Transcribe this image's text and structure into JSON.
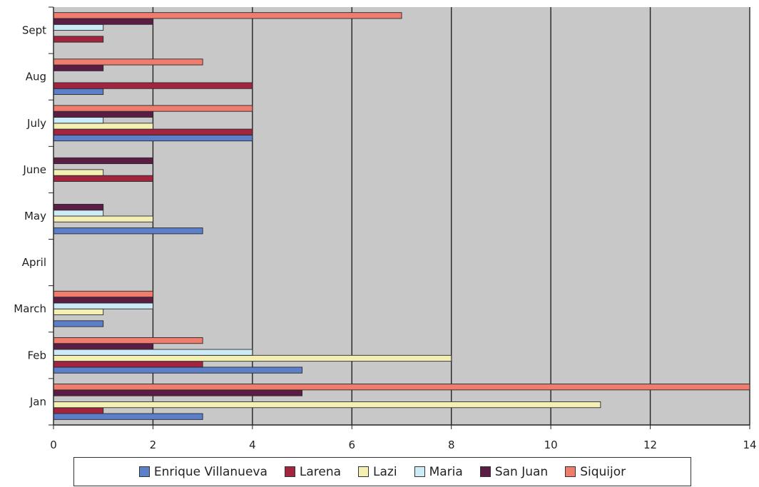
{
  "chart_data": {
    "type": "bar",
    "orientation": "horizontal",
    "categories": [
      "Jan",
      "Feb",
      "March",
      "April",
      "May",
      "June",
      "July",
      "Aug",
      "Sept"
    ],
    "series": [
      {
        "name": "Enrique Villanueva",
        "color": "#5B7FC8",
        "values": [
          3,
          5,
          1,
          0,
          3,
          0,
          4,
          1,
          0
        ]
      },
      {
        "name": "Larena",
        "color": "#A3243F",
        "values": [
          1,
          3,
          0,
          0,
          0,
          2,
          4,
          4,
          1
        ]
      },
      {
        "name": "Lazi",
        "color": "#F4F0B4",
        "values": [
          11,
          8,
          1,
          0,
          2,
          1,
          2,
          0,
          0
        ]
      },
      {
        "name": "Maria",
        "color": "#CDEBF7",
        "values": [
          0,
          4,
          2,
          0,
          1,
          0,
          1,
          0,
          1
        ]
      },
      {
        "name": "San Juan",
        "color": "#5C1D45",
        "values": [
          5,
          2,
          2,
          0,
          1,
          2,
          2,
          1,
          2
        ]
      },
      {
        "name": "Siquijor",
        "color": "#F07C6E",
        "values": [
          14,
          3,
          2,
          0,
          0,
          0,
          4,
          3,
          7
        ]
      }
    ],
    "x_ticks": [
      "0",
      "2",
      "4",
      "6",
      "8",
      "10",
      "12",
      "14"
    ],
    "xlim": [
      0,
      14
    ],
    "grid": "vertical",
    "plot_background": "#C8C8C8",
    "legend_position": "bottom"
  }
}
